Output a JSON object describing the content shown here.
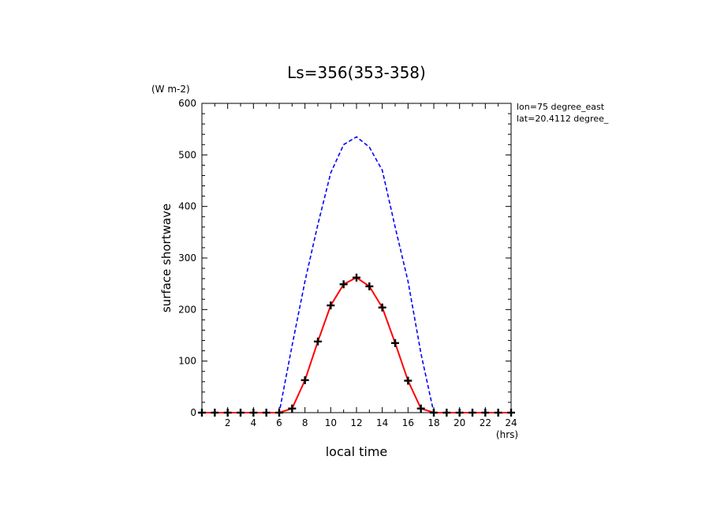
{
  "chart_data": {
    "type": "line",
    "title": "Ls=356(353-358)",
    "ylabel": "surface shortwave",
    "yunit": "(W m-2)",
    "xlabel": "local time",
    "xunit": "(hrs)",
    "xlim": [
      0,
      24
    ],
    "ylim": [
      0,
      600
    ],
    "xticks": [
      2,
      4,
      6,
      8,
      10,
      12,
      14,
      16,
      18,
      20,
      22,
      24
    ],
    "yticks": [
      0,
      100,
      200,
      300,
      400,
      500,
      600
    ],
    "grid": false,
    "annotations": [
      "lon=75 degree_east",
      "lat=20.4112 degree_"
    ],
    "series": [
      {
        "style": "dashed",
        "color": "#0000ff",
        "x": [
          0,
          1,
          2,
          3,
          4,
          5,
          6,
          7,
          8,
          9,
          10,
          11,
          12,
          13,
          14,
          15,
          16,
          17,
          18,
          19,
          20,
          21,
          22,
          23,
          24
        ],
        "y": [
          0,
          0,
          0,
          0,
          0,
          0,
          0,
          130,
          255,
          365,
          465,
          520,
          535,
          515,
          470,
          360,
          255,
          115,
          0,
          0,
          0,
          0,
          0,
          0,
          0
        ]
      },
      {
        "style": "solid",
        "color": "#ff0000",
        "markers": "plus",
        "x": [
          0,
          1,
          2,
          3,
          4,
          5,
          6,
          7,
          8,
          9,
          10,
          11,
          12,
          13,
          14,
          15,
          16,
          17,
          18,
          19,
          20,
          21,
          22,
          23,
          24
        ],
        "y": [
          0,
          0,
          0,
          0,
          0,
          0,
          0,
          8,
          63,
          138,
          208,
          249,
          262,
          245,
          204,
          135,
          62,
          8,
          0,
          0,
          0,
          0,
          0,
          0,
          0
        ]
      }
    ]
  }
}
